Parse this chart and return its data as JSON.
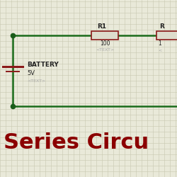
{
  "background_color": "#e9e9d9",
  "grid_color": "#c8c8b0",
  "wire_color": "#1a6b1a",
  "component_color": "#8b1a1a",
  "component_fill": "#dddccc",
  "dot_color": "#1a5c1a",
  "text_color": "#222222",
  "subtext_color": "#aaaaaa",
  "title_color": "#8b0000",
  "title_text": "Series Circu",
  "title_fontsize": 22,
  "battery_label": "BATTERY",
  "battery_value": "5V",
  "battery_subtext": "<TEXT>",
  "r1_label": "R1",
  "r1_value": "100",
  "r1_subtext": "<TEXT>",
  "r2_label": "R",
  "r2_value": "1",
  "r2_subtext": "<"
}
